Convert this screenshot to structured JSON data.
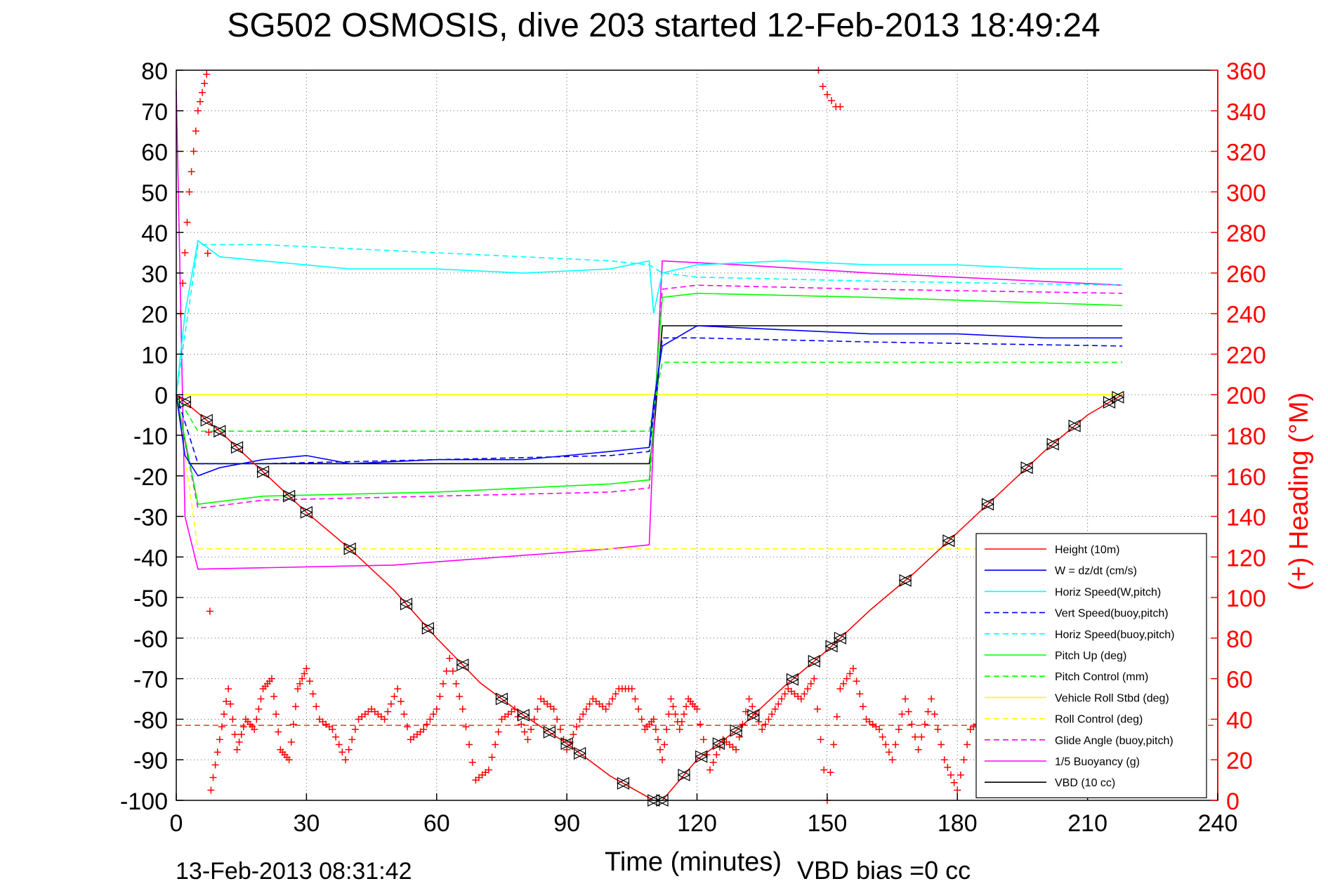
{
  "chart_data": {
    "type": "line",
    "title": "SG502 OSMOSIS, dive 203 started 12-Feb-2013 18:49:24",
    "xlabel": "Time (minutes)",
    "ylabel": "",
    "ylabel_right": "(+) Heading (°M)",
    "xlim": [
      0,
      240
    ],
    "ylim": [
      -100,
      80
    ],
    "ylim_right": [
      0,
      360
    ],
    "xticks": [
      "0",
      "30",
      "60",
      "90",
      "120",
      "150",
      "180",
      "210",
      "240"
    ],
    "yticks": [
      "80",
      "70",
      "60",
      "50",
      "40",
      "30",
      "20",
      "10",
      "0",
      "-10",
      "-20",
      "-30",
      "-40",
      "-50",
      "-60",
      "-70",
      "-80",
      "-90",
      "-100"
    ],
    "yticks_right": [
      "360",
      "340",
      "320",
      "300",
      "280",
      "260",
      "240",
      "220",
      "200",
      "180",
      "160",
      "140",
      "120",
      "100",
      "80",
      "60",
      "40",
      "20",
      "0"
    ],
    "grid": true,
    "legend_position": "bottom-right",
    "footer_left": "13-Feb-2013 08:31:42",
    "footer_right": "VBD bias =0 cc",
    "colors": {
      "height": "#ff0000",
      "w": "#0000ff",
      "horiz_speed": "#00ffff",
      "pitch": "#00ff00",
      "roll": "#ffff00",
      "buoyancy": "#ff00ff",
      "vbd": "#000000",
      "heading": "#ff0000"
    },
    "series": [
      {
        "name": "Height (10m)",
        "color": "#ff0000",
        "style": "solid",
        "x": [
          0,
          10,
          20,
          30,
          40,
          50,
          60,
          70,
          80,
          90,
          100,
          110,
          112,
          120,
          130,
          140,
          150,
          160,
          170,
          180,
          190,
          200,
          210,
          218
        ],
        "y": [
          0,
          -9,
          -19,
          -29,
          -38,
          -48,
          -60,
          -71,
          -79,
          -86,
          -94,
          -100,
          -100,
          -90,
          -82,
          -72,
          -63,
          -53,
          -44,
          -34,
          -24,
          -14,
          -5,
          0
        ]
      },
      {
        "name": "W = dz/dt (cm/s)",
        "color": "#0000ff",
        "style": "solid",
        "x": [
          0,
          2,
          5,
          10,
          20,
          30,
          40,
          60,
          80,
          100,
          109,
          110,
          112,
          120,
          140,
          160,
          180,
          200,
          218
        ],
        "y": [
          0,
          -15,
          -20,
          -18,
          -16,
          -15,
          -17,
          -16,
          -16,
          -14,
          -13,
          -2,
          12,
          17,
          16,
          15,
          15,
          14,
          14
        ]
      },
      {
        "name": "Horiz Speed(W,pitch)",
        "color": "#00ffff",
        "style": "solid",
        "x": [
          0,
          2,
          5,
          10,
          20,
          30,
          40,
          60,
          80,
          100,
          109,
          110,
          112,
          120,
          140,
          160,
          180,
          200,
          218
        ],
        "y": [
          0,
          20,
          38,
          34,
          33,
          32,
          31,
          31,
          30,
          31,
          33,
          20,
          30,
          32,
          33,
          32,
          32,
          31,
          31
        ]
      },
      {
        "name": "Vert Speed(buoy,pitch)",
        "color": "#0000ff",
        "style": "dashed",
        "x": [
          0,
          5,
          20,
          60,
          100,
          109,
          112,
          120,
          160,
          218
        ],
        "y": [
          0,
          -17,
          -17,
          -16,
          -15,
          -14,
          14,
          14,
          13,
          12
        ]
      },
      {
        "name": "Horiz Speed(buoy,pitch)",
        "color": "#00ffff",
        "style": "dashed",
        "x": [
          0,
          5,
          20,
          60,
          100,
          109,
          112,
          120,
          160,
          218
        ],
        "y": [
          0,
          37,
          37,
          35,
          33,
          32,
          30,
          29,
          28,
          27
        ]
      },
      {
        "name": "Pitch Up (deg)",
        "color": "#00ff00",
        "style": "solid",
        "x": [
          0,
          5,
          20,
          60,
          100,
          109,
          112,
          120,
          160,
          218
        ],
        "y": [
          0,
          -27,
          -25,
          -24,
          -22,
          -21,
          24,
          25,
          24,
          22
        ]
      },
      {
        "name": "Pitch Control (mm)",
        "color": "#00ff00",
        "style": "dashed",
        "x": [
          0,
          5,
          20,
          60,
          100,
          109,
          112,
          120,
          160,
          218
        ],
        "y": [
          0,
          -9,
          -9,
          -9,
          -9,
          -9,
          8,
          8,
          8,
          8
        ]
      },
      {
        "name": "Vehicle Roll Stbd (deg)",
        "color": "#ffff00",
        "style": "solid",
        "x": [
          0,
          5,
          20,
          60,
          100,
          109,
          112,
          120,
          160,
          218
        ],
        "y": [
          0,
          0,
          0,
          0,
          0,
          0,
          0,
          0,
          0,
          0
        ]
      },
      {
        "name": "Roll Control (deg)",
        "color": "#ffff00",
        "style": "dashed",
        "x": [
          0,
          5,
          20,
          60,
          100,
          109,
          112,
          120,
          160,
          218
        ],
        "y": [
          0,
          -38,
          -38,
          -38,
          -38,
          -38,
          -38,
          -38,
          -38,
          -38
        ]
      },
      {
        "name": "Glide Angle (buoy,pitch)",
        "color": "#ff00ff",
        "style": "dashed",
        "x": [
          0,
          5,
          20,
          60,
          100,
          109,
          112,
          120,
          160,
          218
        ],
        "y": [
          0,
          -28,
          -26,
          -25,
          -24,
          -23,
          26,
          27,
          26,
          25
        ]
      },
      {
        "name": "1/5 Buoyancy (g)",
        "color": "#ff00ff",
        "style": "solid",
        "x": [
          0,
          2,
          5,
          50,
          100,
          109,
          110,
          112,
          130,
          160,
          218
        ],
        "y": [
          75,
          -30,
          -43,
          -42,
          -38,
          -37,
          -10,
          33,
          32,
          30,
          27
        ]
      },
      {
        "name": "VBD (10 cc)",
        "color": "#000000",
        "style": "solid",
        "x": [
          0,
          3,
          109,
          110,
          112,
          218
        ],
        "y": [
          0,
          -17,
          -17,
          -10,
          17,
          17
        ]
      }
    ],
    "heading_series": {
      "name": "Heading",
      "axis": "right",
      "color": "#ff0000",
      "marker": "+",
      "reference_line": 37,
      "x": [
        1,
        3,
        5,
        7,
        8,
        10,
        12,
        14,
        16,
        18,
        20,
        22,
        24,
        26,
        28,
        30,
        33,
        36,
        39,
        42,
        45,
        48,
        51,
        54,
        57,
        60,
        63,
        66,
        69,
        72,
        75,
        78,
        81,
        84,
        87,
        90,
        93,
        96,
        99,
        102,
        105,
        108,
        110,
        112,
        114,
        116,
        118,
        120,
        123,
        126,
        129,
        132,
        135,
        138,
        141,
        144,
        147,
        150,
        153,
        156,
        159,
        162,
        165,
        168,
        171,
        174,
        177,
        180,
        183,
        186,
        189,
        192,
        195,
        198,
        201,
        204,
        207,
        210,
        213,
        216
      ],
      "y": [
        240,
        300,
        340,
        358,
        5,
        30,
        55,
        25,
        40,
        35,
        55,
        60,
        25,
        20,
        55,
        65,
        40,
        35,
        20,
        40,
        45,
        40,
        55,
        30,
        35,
        45,
        70,
        45,
        10,
        15,
        40,
        45,
        30,
        50,
        45,
        25,
        40,
        50,
        45,
        55,
        55,
        35,
        40,
        20,
        50,
        35,
        50,
        45,
        15,
        30,
        25,
        50,
        35,
        45,
        55,
        50,
        60,
        0,
        55,
        65,
        40,
        35,
        20,
        50,
        25,
        50,
        20,
        5,
        35,
        40,
        50,
        45,
        35,
        30,
        40,
        45,
        55,
        40,
        30,
        35
      ]
    },
    "heading_series_top": {
      "axis": "right",
      "x": [
        148,
        149,
        150,
        151,
        152,
        153
      ],
      "y": [
        360,
        352,
        348,
        345,
        342,
        342
      ]
    },
    "triangle_markers_x": [
      2,
      7,
      10,
      14,
      20,
      26,
      30,
      40,
      53,
      58,
      66,
      75,
      80,
      86,
      90,
      93,
      103,
      110,
      112,
      117,
      121,
      125,
      129,
      133,
      142,
      147,
      151,
      153,
      168,
      178,
      187,
      196,
      202,
      207,
      215,
      217
    ]
  }
}
